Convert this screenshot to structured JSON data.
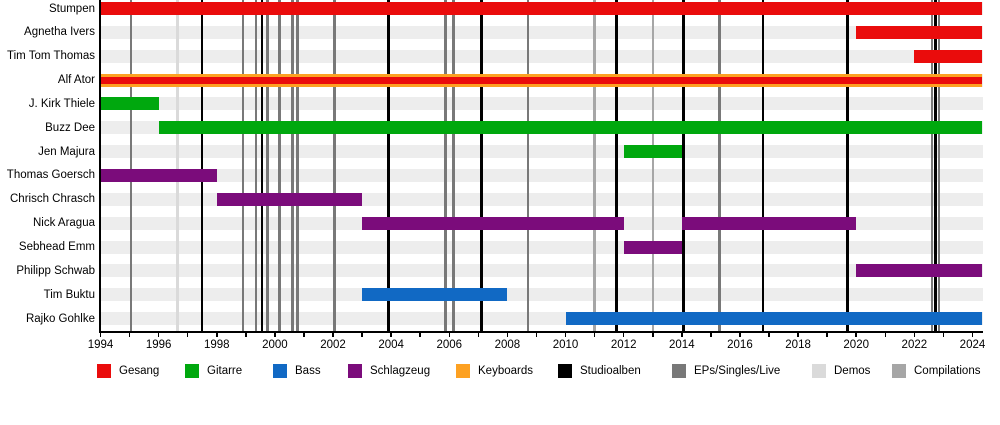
{
  "chart_data": {
    "type": "gantt-timeline",
    "title": "",
    "x_axis": {
      "min": 1994,
      "plot_max": 2024.33,
      "tick_interval_years": 1,
      "label_interval_years": 2,
      "tick_labels": [
        "1994",
        "1996",
        "1998",
        "2000",
        "2002",
        "2004",
        "2006",
        "2008",
        "2010",
        "2012",
        "2014",
        "2016",
        "2018",
        "2020",
        "2022",
        "2024"
      ]
    },
    "members": [
      {
        "name": "Stumpen",
        "stints": [
          {
            "role": "Gesang",
            "start": 1994,
            "end": "present"
          }
        ]
      },
      {
        "name": "Agnetha Ivers",
        "stints": [
          {
            "role": "Gesang",
            "start": 2020,
            "end": "present"
          }
        ]
      },
      {
        "name": "Tim Tom Thomas",
        "stints": [
          {
            "role": "Gesang",
            "start": 2022,
            "end": "present"
          }
        ]
      },
      {
        "name": "Alf Ator",
        "stints": [
          {
            "role": "Keyboards",
            "start": 1994,
            "end": "present"
          },
          {
            "role": "Gesang",
            "start": 1994,
            "end": "present",
            "overlay": true
          }
        ]
      },
      {
        "name": "J. Kirk Thiele",
        "stints": [
          {
            "role": "Gitarre",
            "start": 1994,
            "end": 1996
          }
        ]
      },
      {
        "name": "Buzz Dee",
        "stints": [
          {
            "role": "Gitarre",
            "start": 1996,
            "end": "present"
          }
        ]
      },
      {
        "name": "Jen Majura",
        "stints": [
          {
            "role": "Gitarre",
            "start": 2012,
            "end": 2014
          }
        ]
      },
      {
        "name": "Thomas Goersch",
        "stints": [
          {
            "role": "Schlagzeug",
            "start": 1994,
            "end": 1998
          }
        ]
      },
      {
        "name": "Chrisch Chrasch",
        "stints": [
          {
            "role": "Schlagzeug",
            "start": 1998,
            "end": 2003
          }
        ]
      },
      {
        "name": "Nick Aragua",
        "stints": [
          {
            "role": "Schlagzeug",
            "start": 2003,
            "end": 2012
          },
          {
            "role": "Schlagzeug",
            "start": 2014,
            "end": 2020
          }
        ]
      },
      {
        "name": "Sebhead Emm",
        "stints": [
          {
            "role": "Schlagzeug",
            "start": 2012,
            "end": 2014
          }
        ]
      },
      {
        "name": "Philipp Schwab",
        "stints": [
          {
            "role": "Schlagzeug",
            "start": 2020,
            "end": "present"
          }
        ]
      },
      {
        "name": "Tim Buktu",
        "stints": [
          {
            "role": "Bass",
            "start": 2003,
            "end": 2008
          }
        ]
      },
      {
        "name": "Rajko Gohlke",
        "stints": [
          {
            "role": "Bass",
            "start": 2010,
            "end": "present"
          }
        ]
      }
    ],
    "releases": {
      "studioalben": [
        1997.5,
        1999.55,
        2003.9,
        2007.1,
        2011.75,
        2014.05,
        2016.8,
        2019.7,
        2022.72
      ],
      "eps_singles_live": [
        1995.05,
        1998.9,
        1999.35,
        1999.75,
        2000.15,
        2000.6,
        2000.78,
        2002.05,
        2005.87,
        2006.15,
        2008.7,
        2015.3,
        2022.6,
        2022.84
      ],
      "demos": [
        1996.65
      ],
      "compilations": [
        2011.0,
        2013.0
      ]
    },
    "legend": [
      {
        "label": "Gesang",
        "color_key": "Gesang"
      },
      {
        "label": "Gitarre",
        "color_key": "Gitarre"
      },
      {
        "label": "Bass",
        "color_key": "Bass"
      },
      {
        "label": "Schlagzeug",
        "color_key": "Schlagzeug"
      },
      {
        "label": "Keyboards",
        "color_key": "Keyboards"
      },
      {
        "label": "Studioalben",
        "color_key": "studioalben"
      },
      {
        "label": "EPs/Singles/Live",
        "color_key": "eps_singles_live"
      },
      {
        "label": "Demos",
        "color_key": "demos"
      },
      {
        "label": "Compilations",
        "color_key": "compilations"
      }
    ],
    "colors": {
      "Gesang": "#ea0c0c",
      "Gitarre": "#00a80e",
      "Bass": "#1169c4",
      "Schlagzeug": "#7b0c7b",
      "Keyboards": "#fda122",
      "studioalben": "#000000",
      "eps_singles_live": "#787878",
      "demos": "#dadada",
      "compilations": "#a6a6a6",
      "row_stripe": "#ededed",
      "axis": "#000000"
    }
  }
}
